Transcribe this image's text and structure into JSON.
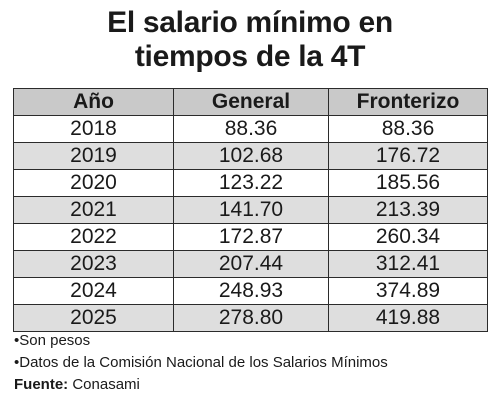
{
  "title_line1": "El salario mínimo en",
  "title_line2": "tiempos de la 4T",
  "columns": [
    "Año",
    "General",
    "Fronterizo"
  ],
  "rows": [
    [
      "2018",
      "88.36",
      "88.36"
    ],
    [
      "2019",
      "102.68",
      "176.72"
    ],
    [
      "2020",
      "123.22",
      "185.56"
    ],
    [
      "2021",
      "141.70",
      "213.39"
    ],
    [
      "2022",
      "172.87",
      "260.34"
    ],
    [
      "2023",
      "207.44",
      "312.41"
    ],
    [
      "2024",
      "248.93",
      "374.89"
    ],
    [
      "2025",
      "278.80",
      "419.88"
    ]
  ],
  "notes": [
    "•Son pesos",
    "•Datos de la Comisión Nacional de los Salarios Mínimos"
  ],
  "source_label": "Fuente:",
  "source_value": " Conasami",
  "colors": {
    "header_bg": "#c9c9c9",
    "alt_row_bg": "#dedede",
    "border": "#2b2b2b",
    "text": "#1a1a1a"
  },
  "chart_data": {
    "type": "table",
    "title": "El salario mínimo en tiempos de la 4T",
    "columns": [
      "Año",
      "General",
      "Fronterizo"
    ],
    "categories": [
      "2018",
      "2019",
      "2020",
      "2021",
      "2022",
      "2023",
      "2024",
      "2025"
    ],
    "series": [
      {
        "name": "General",
        "values": [
          88.36,
          102.68,
          123.22,
          141.7,
          172.87,
          207.44,
          248.93,
          278.8
        ]
      },
      {
        "name": "Fronterizo",
        "values": [
          88.36,
          176.72,
          185.56,
          213.39,
          260.34,
          312.41,
          374.89,
          419.88
        ]
      }
    ]
  }
}
